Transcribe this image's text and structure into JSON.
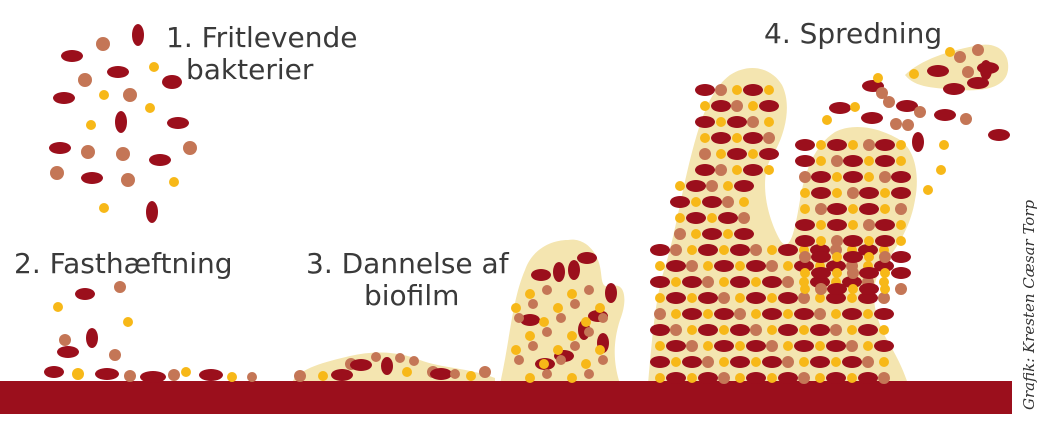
{
  "labels": {
    "stage1_line1": "1. Fritlevende",
    "stage1_line2": "bakterier",
    "stage2": "2. Fasthæftning",
    "stage3_line1": "3. Dannelse af",
    "stage3_line2": "biofilm",
    "stage4": "4. Spredning"
  },
  "credit": "Grafik: Kresten Cæsar Torp",
  "colors": {
    "surface": "#9b0f1c",
    "biofilm_matrix": "#f4e5b0",
    "bacteria_rod": "#9b0f1c",
    "bacteria_coccus": "#c47656",
    "bacteria_small": "#f7b818"
  }
}
